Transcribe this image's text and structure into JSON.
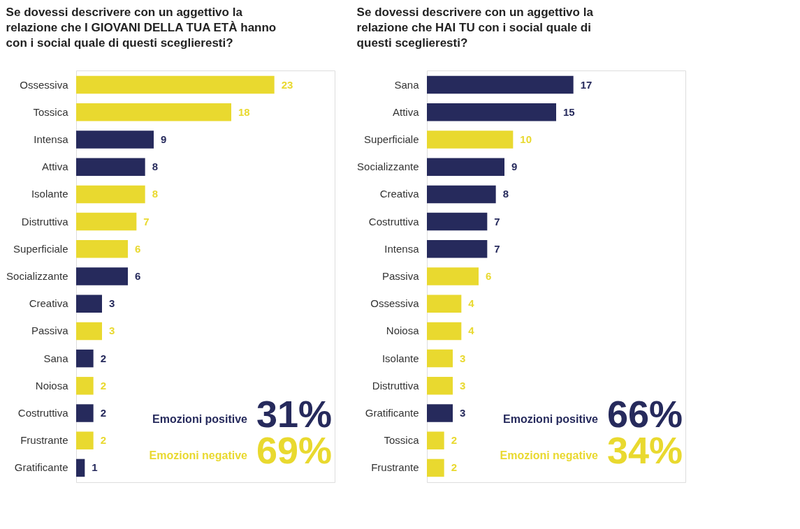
{
  "chart_data": [
    {
      "type": "bar",
      "orientation": "horizontal",
      "title": "Se dovessi descrivere con un aggettivo la relazione che I GIOVANI DELLA TUA ETÀ hanno con i social quale di questi sceglieresti?",
      "categories": [
        "Ossessiva",
        "Tossica",
        "Intensa",
        "Attiva",
        "Isolante",
        "Distruttiva",
        "Superficiale",
        "Socializzante",
        "Creativa",
        "Passiva",
        "Sana",
        "Noiosa",
        "Costruttiva",
        "Frustrante",
        "Gratificante"
      ],
      "values": [
        23,
        18,
        9,
        8,
        8,
        7,
        6,
        6,
        3,
        3,
        2,
        2,
        2,
        2,
        1
      ],
      "colors": [
        "#e9d92f",
        "#e9d92f",
        "#262a5c",
        "#262a5c",
        "#e9d92f",
        "#e9d92f",
        "#e9d92f",
        "#262a5c",
        "#262a5c",
        "#e9d92f",
        "#262a5c",
        "#e9d92f",
        "#262a5c",
        "#e9d92f",
        "#262a5c"
      ],
      "xlim": [
        0,
        30
      ],
      "data_labels": true,
      "tick_labels": "y",
      "annotations": [
        "Emozioni positive 31%",
        "Emozioni negative 69%"
      ]
    },
    {
      "type": "bar",
      "orientation": "horizontal",
      "title": "Se dovessi descrivere con un aggettivo la relazione che HAI TU con i social quale di questi sceglieresti?",
      "categories": [
        "Sana",
        "Attiva",
        "Superficiale",
        "Socializzante",
        "Creativa",
        "Costruttiva",
        "Intensa",
        "Passiva",
        "Ossessiva",
        "Noiosa",
        "Isolante",
        "Distruttiva",
        "Gratificante",
        "Tossica",
        "Frustrante"
      ],
      "values": [
        17,
        15,
        10,
        9,
        8,
        7,
        7,
        6,
        4,
        4,
        3,
        3,
        3,
        2,
        2
      ],
      "colors": [
        "#262a5c",
        "#262a5c",
        "#e9d92f",
        "#262a5c",
        "#262a5c",
        "#262a5c",
        "#262a5c",
        "#e9d92f",
        "#e9d92f",
        "#e9d92f",
        "#e9d92f",
        "#e9d92f",
        "#262a5c",
        "#e9d92f",
        "#e9d92f"
      ],
      "xlim": [
        0,
        30
      ],
      "data_labels": true,
      "tick_labels": "y",
      "annotations": [
        "Emozioni positive 66%",
        "Emozioni negative 34%"
      ]
    }
  ]
}
